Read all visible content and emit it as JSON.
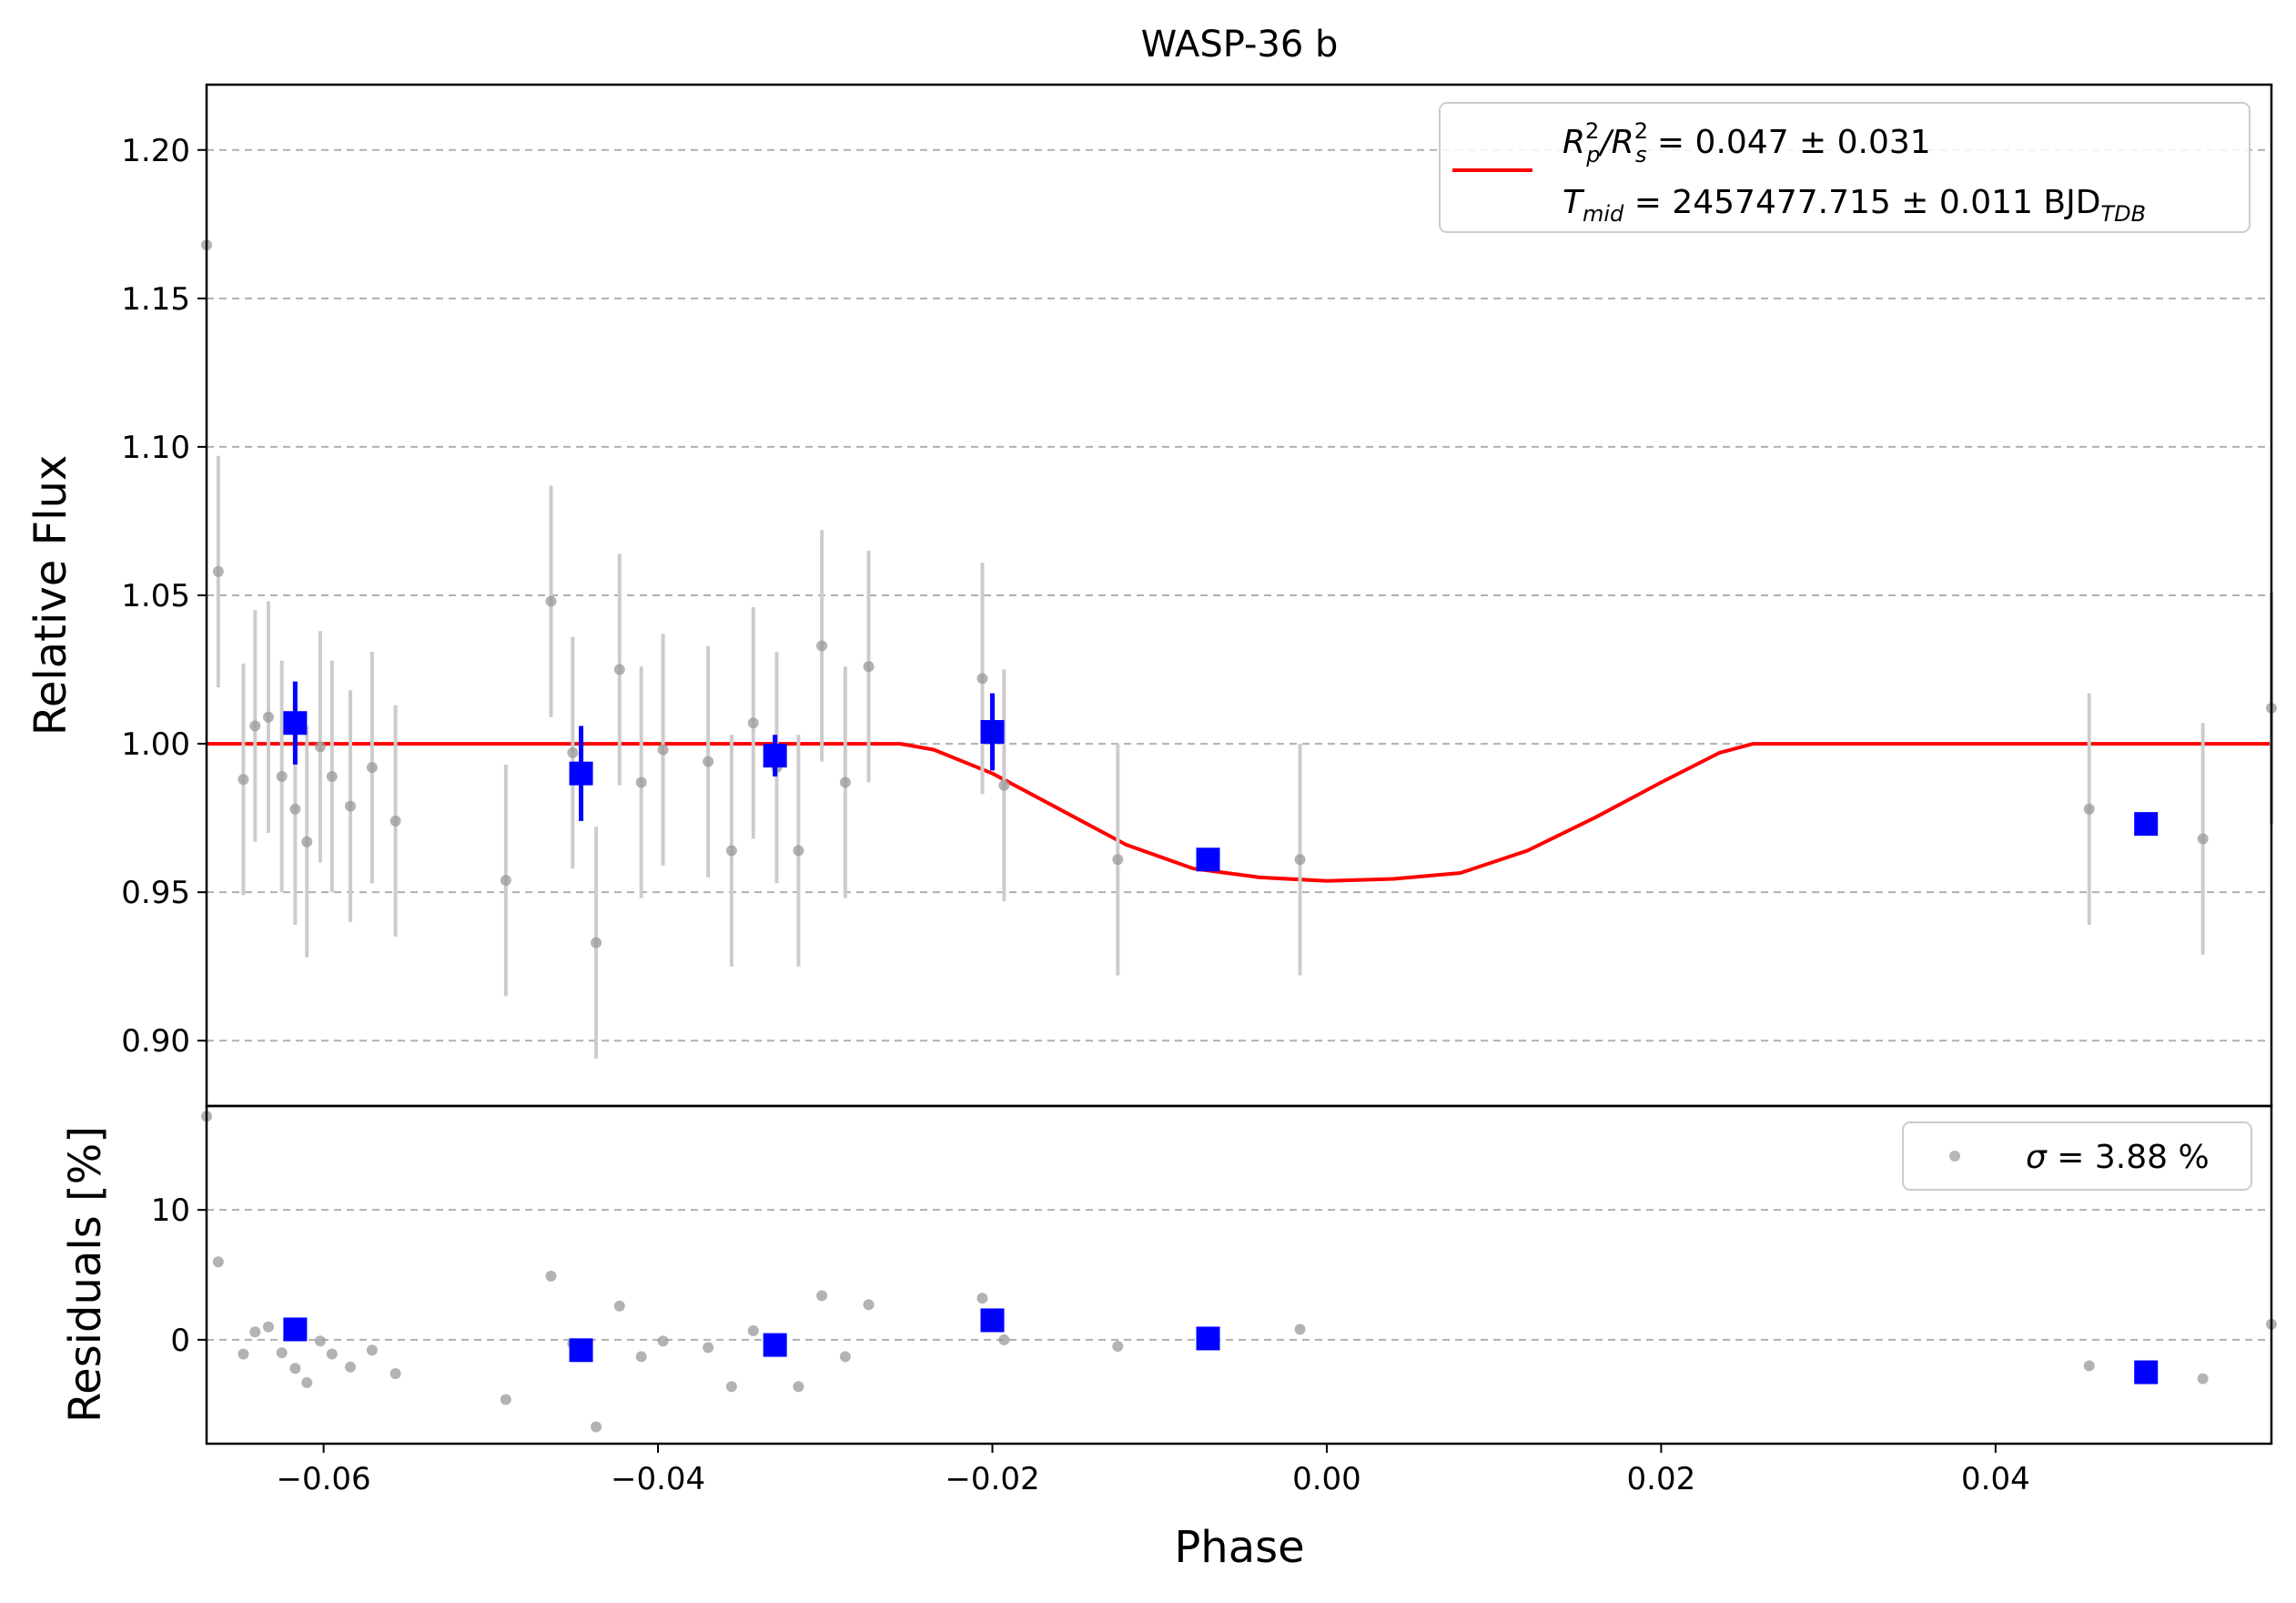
{
  "chart_data": {
    "type": "scatter",
    "title": "WASP-36 b",
    "xlabel": "Phase",
    "xlim": [
      -0.067,
      0.0565
    ],
    "xticks": [
      -0.06,
      -0.04,
      -0.02,
      0.0,
      0.02,
      0.04
    ],
    "xtick_labels": [
      "−0.06",
      "−0.04",
      "−0.02",
      "0.00",
      "0.02",
      "0.04"
    ],
    "grid": "horizontal dashed",
    "colors": {
      "raw": "#999999",
      "errorbar": "#cccccc",
      "binned": "#0000ff",
      "model": "#ff0000",
      "grid": "#b0b0b0"
    },
    "top_panel": {
      "ylabel": "Relative Flux",
      "ylim": [
        0.878,
        1.222
      ],
      "yticks": [
        0.9,
        0.95,
        1.0,
        1.05,
        1.1,
        1.15,
        1.2
      ],
      "ytick_labels": [
        "0.90",
        "0.95",
        "1.00",
        "1.05",
        "1.10",
        "1.15",
        "1.20"
      ],
      "legend": {
        "placement": "top-right",
        "line1": {
          "main": "R",
          "sup1": "2",
          "sub1": "p",
          "mid": "/R",
          "sup2": "2",
          "sub2": "s",
          "rest": " = 0.047 ± 0.031"
        },
        "line2": {
          "main": "T",
          "sub1": "mid",
          "rest": " = 2457477.715 ± 0.011 BJD",
          "sub2": "TDB"
        }
      },
      "raw": [
        {
          "x": -0.067,
          "y": 1.168,
          "err": 0.0
        },
        {
          "x": -0.0663,
          "y": 1.058,
          "err": 0.039
        },
        {
          "x": -0.0648,
          "y": 0.988,
          "err": 0.039
        },
        {
          "x": -0.0641,
          "y": 1.006,
          "err": 0.039
        },
        {
          "x": -0.0633,
          "y": 1.009,
          "err": 0.039
        },
        {
          "x": -0.0625,
          "y": 0.989,
          "err": 0.039
        },
        {
          "x": -0.0617,
          "y": 0.978,
          "err": 0.039
        },
        {
          "x": -0.061,
          "y": 0.967,
          "err": 0.039
        },
        {
          "x": -0.0602,
          "y": 0.999,
          "err": 0.039
        },
        {
          "x": -0.0595,
          "y": 0.989,
          "err": 0.039
        },
        {
          "x": -0.0584,
          "y": 0.979,
          "err": 0.039
        },
        {
          "x": -0.0571,
          "y": 0.992,
          "err": 0.039
        },
        {
          "x": -0.0557,
          "y": 0.974,
          "err": 0.039
        },
        {
          "x": -0.0491,
          "y": 0.954,
          "err": 0.039
        },
        {
          "x": -0.0464,
          "y": 1.048,
          "err": 0.039
        },
        {
          "x": -0.0451,
          "y": 0.997,
          "err": 0.039
        },
        {
          "x": -0.0437,
          "y": 0.933,
          "err": 0.039
        },
        {
          "x": -0.0423,
          "y": 1.025,
          "err": 0.039
        },
        {
          "x": -0.041,
          "y": 0.987,
          "err": 0.039
        },
        {
          "x": -0.0397,
          "y": 0.998,
          "err": 0.039
        },
        {
          "x": -0.037,
          "y": 0.994,
          "err": 0.039
        },
        {
          "x": -0.0356,
          "y": 0.964,
          "err": 0.039
        },
        {
          "x": -0.0343,
          "y": 1.007,
          "err": 0.039
        },
        {
          "x": -0.0329,
          "y": 0.992,
          "err": 0.039
        },
        {
          "x": -0.0316,
          "y": 0.964,
          "err": 0.039
        },
        {
          "x": -0.0302,
          "y": 1.033,
          "err": 0.039
        },
        {
          "x": -0.0288,
          "y": 0.987,
          "err": 0.039
        },
        {
          "x": -0.0274,
          "y": 1.026,
          "err": 0.039
        },
        {
          "x": -0.0206,
          "y": 1.022,
          "err": 0.039
        },
        {
          "x": -0.0193,
          "y": 0.986,
          "err": 0.039
        },
        {
          "x": -0.0125,
          "y": 0.961,
          "err": 0.039
        },
        {
          "x": -0.0016,
          "y": 0.961,
          "err": 0.039
        },
        {
          "x": 0.0456,
          "y": 0.978,
          "err": 0.039
        },
        {
          "x": 0.0524,
          "y": 0.968,
          "err": 0.039
        },
        {
          "x": 0.0565,
          "y": 1.012,
          "err": 0.039
        }
      ],
      "binned": [
        {
          "x": -0.0617,
          "y": 1.007,
          "err": 0.014
        },
        {
          "x": -0.0446,
          "y": 0.99,
          "err": 0.016
        },
        {
          "x": -0.033,
          "y": 0.996,
          "err": 0.007
        },
        {
          "x": -0.02,
          "y": 1.004,
          "err": 0.013
        },
        {
          "x": -0.0071,
          "y": 0.961,
          "err": 0.0
        },
        {
          "x": 0.049,
          "y": 0.973,
          "err": 0.0
        }
      ],
      "model": [
        {
          "x": -0.067,
          "y": 1.0
        },
        {
          "x": -0.0255,
          "y": 1.0
        },
        {
          "x": -0.0235,
          "y": 0.998
        },
        {
          "x": -0.02,
          "y": 0.99
        },
        {
          "x": -0.016,
          "y": 0.978
        },
        {
          "x": -0.012,
          "y": 0.966
        },
        {
          "x": -0.008,
          "y": 0.958
        },
        {
          "x": -0.004,
          "y": 0.955
        },
        {
          "x": 0.0,
          "y": 0.9538
        },
        {
          "x": 0.004,
          "y": 0.9545
        },
        {
          "x": 0.008,
          "y": 0.9565
        },
        {
          "x": 0.012,
          "y": 0.964
        },
        {
          "x": 0.016,
          "y": 0.975
        },
        {
          "x": 0.02,
          "y": 0.987
        },
        {
          "x": 0.0235,
          "y": 0.997
        },
        {
          "x": 0.0255,
          "y": 1.0
        },
        {
          "x": 0.0565,
          "y": 1.0
        }
      ]
    },
    "bottom_panel": {
      "ylabel": "Residuals [%]",
      "ylim": [
        -8,
        18
      ],
      "yticks": [
        0,
        10
      ],
      "ytick_labels": [
        "0",
        "10"
      ],
      "legend": {
        "placement": "top-right",
        "sigma": "σ",
        "text": " = 3.88 %"
      },
      "raw": [
        {
          "x": -0.067,
          "y": 17.2
        },
        {
          "x": -0.0663,
          "y": 6.0
        },
        {
          "x": -0.0648,
          "y": -1.1
        },
        {
          "x": -0.0641,
          "y": 0.6
        },
        {
          "x": -0.0633,
          "y": 1.0
        },
        {
          "x": -0.0625,
          "y": -1.0
        },
        {
          "x": -0.0617,
          "y": -2.2
        },
        {
          "x": -0.061,
          "y": -3.3
        },
        {
          "x": -0.0602,
          "y": -0.1
        },
        {
          "x": -0.0595,
          "y": -1.1
        },
        {
          "x": -0.0584,
          "y": -2.1
        },
        {
          "x": -0.0571,
          "y": -0.8
        },
        {
          "x": -0.0557,
          "y": -2.6
        },
        {
          "x": -0.0491,
          "y": -4.6
        },
        {
          "x": -0.0464,
          "y": 4.9
        },
        {
          "x": -0.0451,
          "y": -0.3
        },
        {
          "x": -0.0437,
          "y": -6.7
        },
        {
          "x": -0.0423,
          "y": 2.6
        },
        {
          "x": -0.041,
          "y": -1.3
        },
        {
          "x": -0.0397,
          "y": -0.1
        },
        {
          "x": -0.037,
          "y": -0.6
        },
        {
          "x": -0.0356,
          "y": -3.6
        },
        {
          "x": -0.0343,
          "y": 0.7
        },
        {
          "x": -0.0329,
          "y": -0.5
        },
        {
          "x": -0.0316,
          "y": -3.6
        },
        {
          "x": -0.0302,
          "y": 3.4
        },
        {
          "x": -0.0288,
          "y": -1.3
        },
        {
          "x": -0.0274,
          "y": 2.7
        },
        {
          "x": -0.0206,
          "y": 3.2
        },
        {
          "x": -0.0193,
          "y": 0.0
        },
        {
          "x": -0.0125,
          "y": -0.5
        },
        {
          "x": -0.0016,
          "y": 0.8
        },
        {
          "x": 0.0456,
          "y": -2.0
        },
        {
          "x": 0.0524,
          "y": -3.0
        },
        {
          "x": 0.0565,
          "y": 1.2
        }
      ],
      "binned": [
        {
          "x": -0.0617,
          "y": 0.8
        },
        {
          "x": -0.0446,
          "y": -0.8
        },
        {
          "x": -0.033,
          "y": -0.4
        },
        {
          "x": -0.02,
          "y": 1.5
        },
        {
          "x": -0.0071,
          "y": 0.1
        },
        {
          "x": 0.049,
          "y": -2.5
        }
      ]
    }
  }
}
